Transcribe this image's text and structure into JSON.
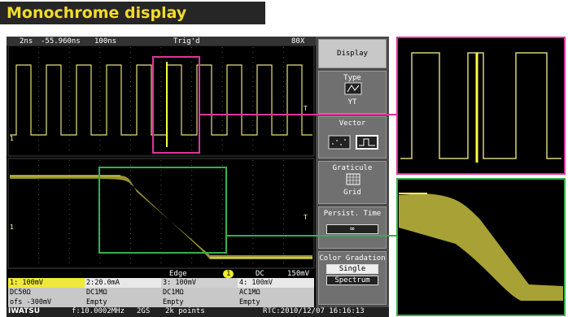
{
  "banner": {
    "title": "Monochrome display"
  },
  "status_bar": {
    "time_div": "2ns",
    "position": "-55.960ns",
    "record": "100ns",
    "trigger_state": "Trig'd",
    "zoom": "80X"
  },
  "markers": {
    "channel": "1",
    "trigger": "T"
  },
  "menu": {
    "title": "Display",
    "type_label": "Type",
    "type_value": "YT",
    "vector_label": "Vector",
    "graticule_label": "Graticule",
    "graticule_value": "Grid",
    "persist_label": "Persist. Time",
    "persist_value": "∞",
    "gradation_label": "Color Gradation",
    "gradation_value": "Single",
    "gradation_option": "Spectrum"
  },
  "trigger_bar": {
    "type": "Edge",
    "source": "1",
    "coupling": "DC",
    "level": "150mV"
  },
  "channels": [
    {
      "scale": "1: 100mV",
      "coupling": "DC50Ω",
      "note": "ofs  -300mV"
    },
    {
      "scale": "2:20.0mA",
      "coupling": "DC1MΩ",
      "note": "Empty"
    },
    {
      "scale": "3: 100mV",
      "coupling": "DC1MΩ",
      "note": "Empty"
    },
    {
      "scale": "4: 100mV",
      "coupling": "AC1MΩ",
      "note": "Empty"
    }
  ],
  "footer": {
    "brand": "IWATSU",
    "frequency": "f:10.0002MHz",
    "sample_rate": "2GS",
    "points": "2k points",
    "clock": "RTC:2010/12/07 16:16:13"
  }
}
